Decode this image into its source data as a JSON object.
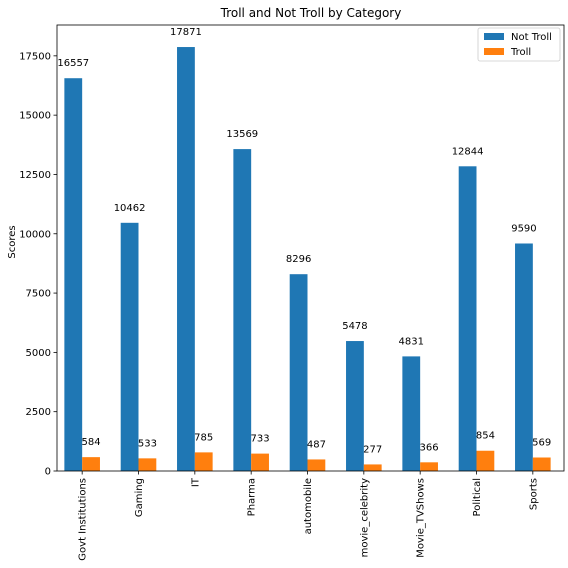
{
  "chart_data": {
    "type": "bar",
    "title": "Troll and Not Troll by Category",
    "xlabel": "",
    "ylabel": "Scores",
    "ylim": [
      0,
      18800
    ],
    "yticks": [
      0,
      2500,
      5000,
      7500,
      10000,
      12500,
      15000,
      17500
    ],
    "categories": [
      "Govt Institutions",
      "Gaming",
      "IT",
      "Pharma",
      "automobile",
      "movie_celebrity",
      "Movie_TVShows",
      "Political",
      "Sports"
    ],
    "series": [
      {
        "name": "Not Troll",
        "color": "#1f77b4",
        "values": [
          16557,
          10462,
          17871,
          13569,
          8296,
          5478,
          4831,
          12844,
          9590
        ]
      },
      {
        "name": "Troll",
        "color": "#ff7f0e",
        "values": [
          584,
          533,
          785,
          733,
          487,
          277,
          366,
          854,
          569
        ]
      }
    ],
    "legend": "top-right",
    "grid": false
  }
}
